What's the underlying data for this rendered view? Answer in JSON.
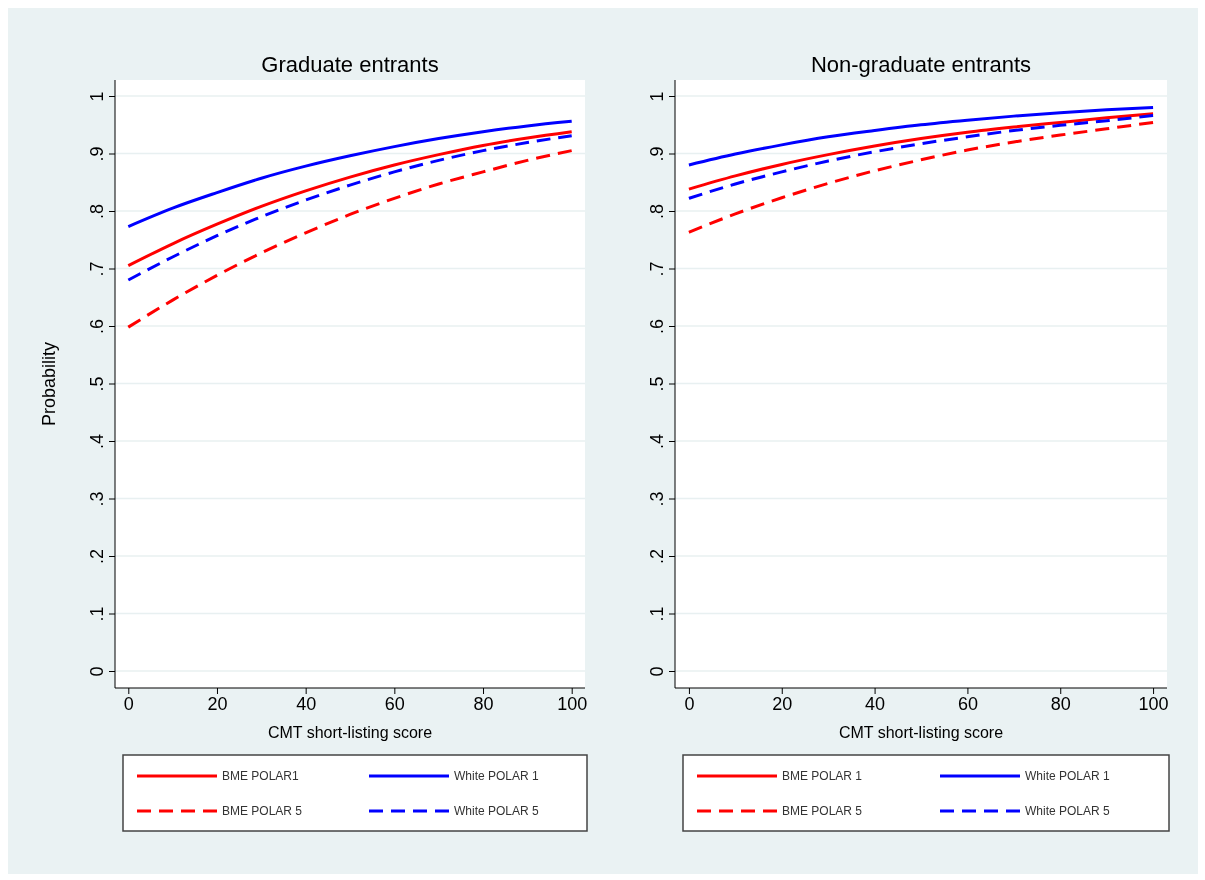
{
  "chart_data": [
    {
      "type": "line",
      "title": "Graduate entrants",
      "xlabel": "CMT short-listing score",
      "ylabel": "Probability",
      "x": [
        0,
        10,
        20,
        30,
        40,
        50,
        60,
        70,
        80,
        90,
        100
      ],
      "xlim": [
        -3,
        103
      ],
      "xticks": [
        0,
        20,
        40,
        60,
        80,
        100
      ],
      "ylim": [
        0,
        1
      ],
      "yticks": [
        {
          "value": 0,
          "label": "0"
        },
        {
          "value": 0.1,
          "label": ".1"
        },
        {
          "value": 0.2,
          "label": ".2"
        },
        {
          "value": 0.3,
          "label": ".3"
        },
        {
          "value": 0.4,
          "label": ".4"
        },
        {
          "value": 0.5,
          "label": ".5"
        },
        {
          "value": 0.6,
          "label": ".6"
        },
        {
          "value": 0.7,
          "label": ".7"
        },
        {
          "value": 0.8,
          "label": ".8"
        },
        {
          "value": 0.9,
          "label": ".9"
        },
        {
          "value": 1,
          "label": "1"
        }
      ],
      "grid": "y",
      "legend": "bottom",
      "series": [
        {
          "name": "BME POLAR1",
          "color": "#ff0000",
          "line_style": "solid",
          "values": [
            0.705,
            0.743,
            0.777,
            0.808,
            0.835,
            0.859,
            0.88,
            0.898,
            0.914,
            0.927,
            0.938
          ]
        },
        {
          "name": "White POLAR 1",
          "color": "#0000ff",
          "line_style": "solid",
          "values": [
            0.773,
            0.805,
            0.832,
            0.857,
            0.878,
            0.896,
            0.912,
            0.926,
            0.938,
            0.948,
            0.956
          ]
        },
        {
          "name": "BME POLAR 5",
          "color": "#ff0000",
          "line_style": "dashed",
          "values": [
            0.598,
            0.645,
            0.688,
            0.727,
            0.762,
            0.794,
            0.822,
            0.847,
            0.868,
            0.888,
            0.905
          ]
        },
        {
          "name": "White POLAR 5",
          "color": "#0000ff",
          "line_style": "dashed",
          "values": [
            0.68,
            0.72,
            0.757,
            0.79,
            0.819,
            0.845,
            0.868,
            0.888,
            0.905,
            0.919,
            0.931
          ]
        }
      ]
    },
    {
      "type": "line",
      "title": "Non-graduate entrants",
      "xlabel": "CMT short-listing score",
      "x": [
        0,
        10,
        20,
        30,
        40,
        50,
        60,
        70,
        80,
        90,
        100
      ],
      "xlim": [
        -3,
        103
      ],
      "xticks": [
        0,
        20,
        40,
        60,
        80,
        100
      ],
      "ylim": [
        0,
        1
      ],
      "yticks": [
        {
          "value": 0,
          "label": "0"
        },
        {
          "value": 0.1,
          "label": ".1"
        },
        {
          "value": 0.2,
          "label": ".2"
        },
        {
          "value": 0.3,
          "label": ".3"
        },
        {
          "value": 0.4,
          "label": ".4"
        },
        {
          "value": 0.5,
          "label": ".5"
        },
        {
          "value": 0.6,
          "label": ".6"
        },
        {
          "value": 0.7,
          "label": ".7"
        },
        {
          "value": 0.8,
          "label": ".8"
        },
        {
          "value": 0.9,
          "label": ".9"
        },
        {
          "value": 1,
          "label": "1"
        }
      ],
      "grid": "y",
      "legend": "bottom",
      "series": [
        {
          "name": "BME POLAR 1",
          "color": "#ff0000",
          "line_style": "solid",
          "values": [
            0.838,
            0.861,
            0.881,
            0.898,
            0.913,
            0.926,
            0.937,
            0.946,
            0.954,
            0.962,
            0.969
          ]
        },
        {
          "name": "White POLAR 1",
          "color": "#0000ff",
          "line_style": "solid",
          "values": [
            0.88,
            0.899,
            0.915,
            0.929,
            0.94,
            0.95,
            0.958,
            0.965,
            0.971,
            0.976,
            0.98
          ]
        },
        {
          "name": "BME  POLAR 5",
          "color": "#ff0000",
          "line_style": "dashed",
          "values": [
            0.763,
            0.795,
            0.823,
            0.848,
            0.87,
            0.889,
            0.906,
            0.92,
            0.932,
            0.943,
            0.954
          ]
        },
        {
          "name": "White POLAR 5",
          "color": "#0000ff",
          "line_style": "dashed",
          "values": [
            0.822,
            0.847,
            0.868,
            0.887,
            0.903,
            0.917,
            0.929,
            0.94,
            0.949,
            0.957,
            0.966
          ]
        }
      ]
    }
  ]
}
